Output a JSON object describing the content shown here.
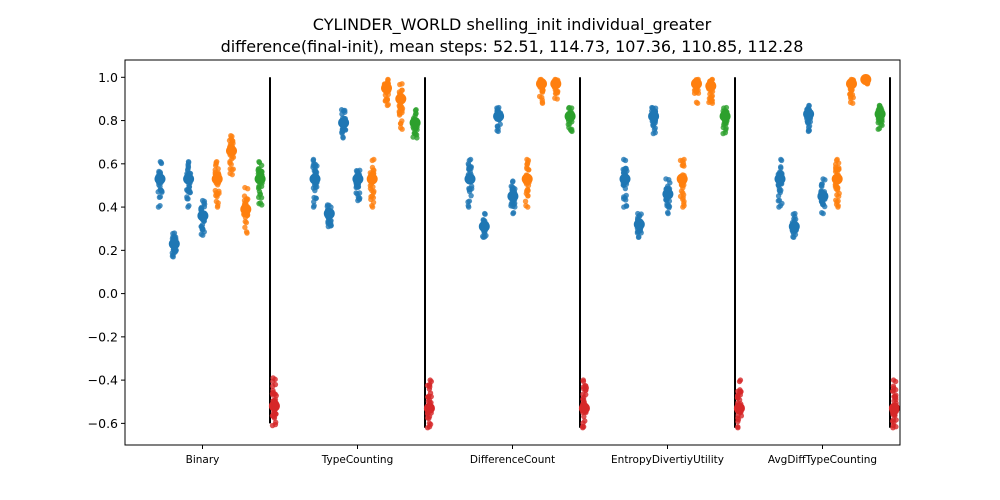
{
  "chart_data": {
    "type": "scatter",
    "title_line1": "CYLINDER_WORLD shelling_init individual_greater",
    "title_line2": "difference(final-init), mean steps: 52.51, 114.73, 107.36, 110.85, 112.28",
    "xlabel": "",
    "ylabel": "",
    "ylim": [
      -0.7,
      1.08
    ],
    "yticks": [
      1.0,
      0.8,
      0.6,
      0.4,
      0.2,
      0.0,
      -0.2,
      -0.4,
      -0.6
    ],
    "ytick_labels": [
      "1.0",
      "0.8",
      "0.6",
      "0.4",
      "0.2",
      "0.0",
      "−0.2",
      "−0.4",
      "−0.6"
    ],
    "categories": [
      "Binary",
      "TypeCounting",
      "DifferenceCount",
      "EntropyDivertiyUtility",
      "AvgDiffTypeCounting"
    ],
    "colors": {
      "blue": "#1f77b4",
      "orange": "#ff7f0e",
      "green": "#2ca02c",
      "red": "#d62728"
    },
    "groups": [
      {
        "category": "Binary",
        "strips": [
          {
            "color": "blue",
            "mean": 0.53,
            "min": 0.4,
            "max": 0.61
          },
          {
            "color": "blue",
            "mean": 0.23,
            "min": 0.17,
            "max": 0.28
          },
          {
            "color": "blue",
            "mean": 0.53,
            "min": 0.4,
            "max": 0.61
          },
          {
            "color": "blue",
            "mean": 0.36,
            "min": 0.27,
            "max": 0.43
          },
          {
            "color": "orange",
            "mean": 0.53,
            "min": 0.4,
            "max": 0.61
          },
          {
            "color": "orange",
            "mean": 0.66,
            "min": 0.55,
            "max": 0.73
          },
          {
            "color": "orange",
            "mean": 0.39,
            "min": 0.28,
            "max": 0.49
          },
          {
            "color": "green",
            "mean": 0.53,
            "min": 0.41,
            "max": 0.61
          },
          {
            "color": "red",
            "mean": -0.52,
            "min": -0.61,
            "max": -0.39
          }
        ]
      },
      {
        "category": "TypeCounting",
        "strips": [
          {
            "color": "blue",
            "mean": 0.53,
            "min": 0.4,
            "max": 0.62
          },
          {
            "color": "blue",
            "mean": 0.37,
            "min": 0.31,
            "max": 0.41
          },
          {
            "color": "blue",
            "mean": 0.79,
            "min": 0.72,
            "max": 0.85
          },
          {
            "color": "blue",
            "mean": 0.53,
            "min": 0.43,
            "max": 0.57
          },
          {
            "color": "orange",
            "mean": 0.53,
            "min": 0.4,
            "max": 0.62
          },
          {
            "color": "orange",
            "mean": 0.95,
            "min": 0.87,
            "max": 0.99
          },
          {
            "color": "orange",
            "mean": 0.9,
            "min": 0.76,
            "max": 0.97
          },
          {
            "color": "green",
            "mean": 0.79,
            "min": 0.72,
            "max": 0.85
          },
          {
            "color": "red",
            "mean": -0.53,
            "min": -0.62,
            "max": -0.4
          }
        ]
      },
      {
        "category": "DifferenceCount",
        "strips": [
          {
            "color": "blue",
            "mean": 0.53,
            "min": 0.4,
            "max": 0.62
          },
          {
            "color": "blue",
            "mean": 0.31,
            "min": 0.26,
            "max": 0.37
          },
          {
            "color": "blue",
            "mean": 0.82,
            "min": 0.75,
            "max": 0.86
          },
          {
            "color": "blue",
            "mean": 0.45,
            "min": 0.37,
            "max": 0.52
          },
          {
            "color": "orange",
            "mean": 0.53,
            "min": 0.4,
            "max": 0.62
          },
          {
            "color": "orange",
            "mean": 0.97,
            "min": 0.88,
            "max": 0.99
          },
          {
            "color": "orange",
            "mean": 0.97,
            "min": 0.9,
            "max": 0.99
          },
          {
            "color": "green",
            "mean": 0.82,
            "min": 0.75,
            "max": 0.86
          },
          {
            "color": "red",
            "mean": -0.53,
            "min": -0.62,
            "max": -0.4
          }
        ]
      },
      {
        "category": "EntropyDivertiyUtility",
        "strips": [
          {
            "color": "blue",
            "mean": 0.53,
            "min": 0.4,
            "max": 0.62
          },
          {
            "color": "blue",
            "mean": 0.32,
            "min": 0.26,
            "max": 0.37
          },
          {
            "color": "blue",
            "mean": 0.82,
            "min": 0.74,
            "max": 0.86
          },
          {
            "color": "blue",
            "mean": 0.46,
            "min": 0.37,
            "max": 0.53
          },
          {
            "color": "orange",
            "mean": 0.53,
            "min": 0.4,
            "max": 0.62
          },
          {
            "color": "orange",
            "mean": 0.97,
            "min": 0.88,
            "max": 0.99
          },
          {
            "color": "orange",
            "mean": 0.96,
            "min": 0.88,
            "max": 0.99
          },
          {
            "color": "green",
            "mean": 0.82,
            "min": 0.74,
            "max": 0.86
          },
          {
            "color": "red",
            "mean": -0.53,
            "min": -0.62,
            "max": -0.4
          }
        ]
      },
      {
        "category": "AvgDiffTypeCounting",
        "strips": [
          {
            "color": "blue",
            "mean": 0.53,
            "min": 0.4,
            "max": 0.62
          },
          {
            "color": "blue",
            "mean": 0.31,
            "min": 0.26,
            "max": 0.37
          },
          {
            "color": "blue",
            "mean": 0.83,
            "min": 0.75,
            "max": 0.87
          },
          {
            "color": "blue",
            "mean": 0.45,
            "min": 0.37,
            "max": 0.53
          },
          {
            "color": "orange",
            "mean": 0.53,
            "min": 0.4,
            "max": 0.62
          },
          {
            "color": "orange",
            "mean": 0.97,
            "min": 0.88,
            "max": 0.99
          },
          {
            "color": "orange",
            "mean": 0.99,
            "min": 0.97,
            "max": 1.0
          },
          {
            "color": "green",
            "mean": 0.83,
            "min": 0.76,
            "max": 0.87
          },
          {
            "color": "red",
            "mean": -0.53,
            "min": -0.62,
            "max": -0.4
          }
        ]
      }
    ],
    "separators": [
      {
        "after": "Binary",
        "range": [
          -0.6,
          1.0
        ]
      },
      {
        "after": "TypeCounting",
        "range": [
          -0.62,
          1.0
        ]
      },
      {
        "after": "DifferenceCount",
        "range": [
          -0.62,
          1.0
        ]
      },
      {
        "after": "EntropyDivertiyUtility",
        "range": [
          -0.62,
          1.0
        ]
      },
      {
        "after": "AvgDiffTypeCounting",
        "range": [
          -0.62,
          1.0
        ]
      }
    ],
    "grid": false,
    "legend": "none"
  }
}
